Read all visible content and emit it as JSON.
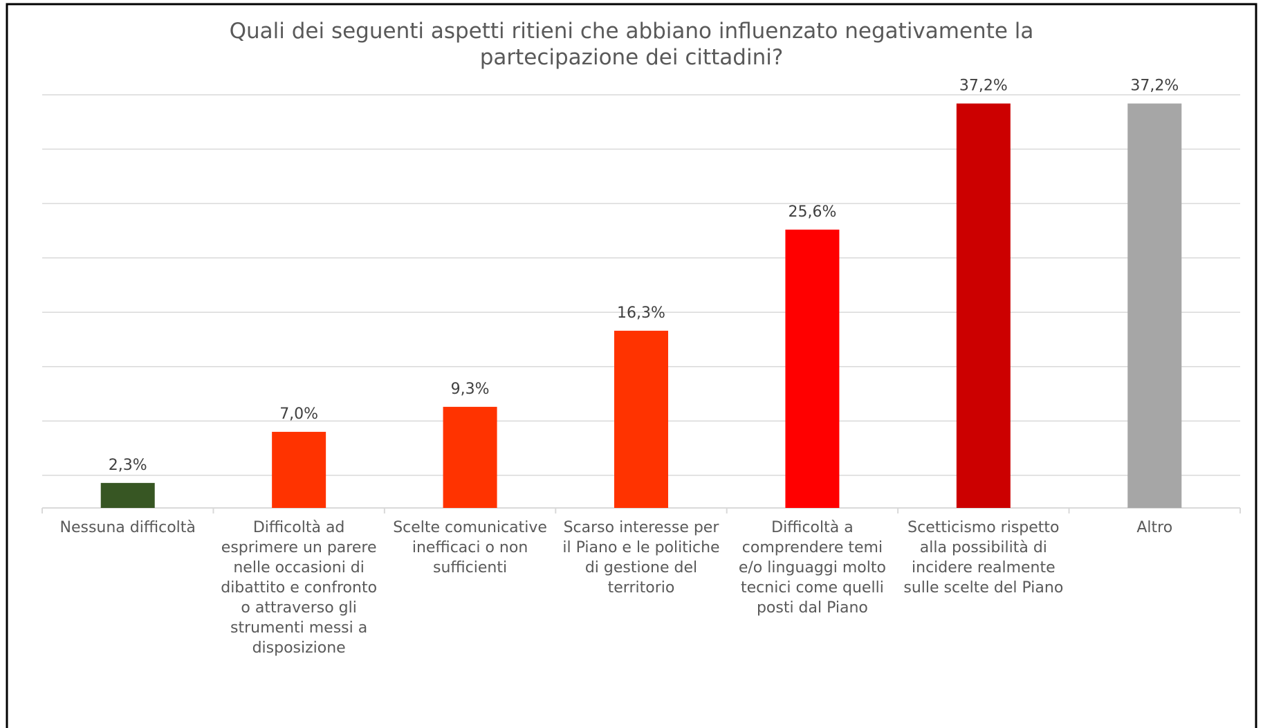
{
  "chart_data": {
    "type": "bar",
    "title": "Quali dei seguenti aspetti ritieni che abbiano influenzato negativamente la partecipazione dei cittadini?",
    "categories": [
      "Nessuna difficoltà",
      "Difficoltà ad esprimere un parere nelle occasioni di dibattito e confronto o attraverso gli strumenti messi a disposizione",
      "Scelte comunicative inefficaci o non sufficienti",
      "Scarso interesse per il Piano e le politiche di gestione del territorio",
      "Difficoltà a comprendere temi e/o linguaggi molto tecnici come quelli posti dal Piano",
      "Scetticismo rispetto alla possibilità di incidere realmente sulle scelte del Piano",
      "Altro"
    ],
    "values": [
      2.3,
      7.0,
      9.3,
      16.3,
      25.6,
      37.2,
      37.2
    ],
    "value_labels": [
      "2,3%",
      "7,0%",
      "9,3%",
      "16,3%",
      "25,6%",
      "37,2%",
      "37,2%"
    ],
    "colors": [
      "#375623",
      "#ff3300",
      "#ff3300",
      "#ff3300",
      "#ff0000",
      "#cc0000",
      "#a6a6a6"
    ],
    "ylim": [
      0,
      38
    ],
    "yticks": [
      3,
      8,
      13,
      18,
      23,
      28,
      33,
      38
    ],
    "grid": true
  }
}
